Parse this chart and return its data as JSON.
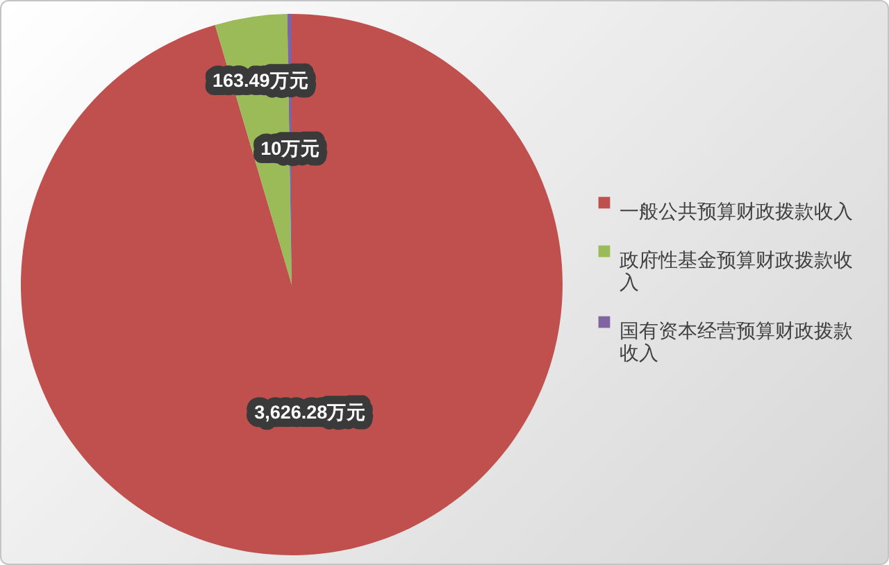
{
  "chart_data": {
    "type": "pie",
    "categories": [
      "一般公共预算财政拨款收入",
      "政府性基金预算财政拨款收入",
      "国有资本经营预算财政拨款收入"
    ],
    "values": [
      3626.28,
      163.49,
      10
    ],
    "colors": [
      "#c0504d",
      "#9bbb59",
      "#8064a2"
    ],
    "value_labels": [
      "3,626.28万元",
      "163.49万元",
      "10万元"
    ],
    "legend": "right"
  }
}
